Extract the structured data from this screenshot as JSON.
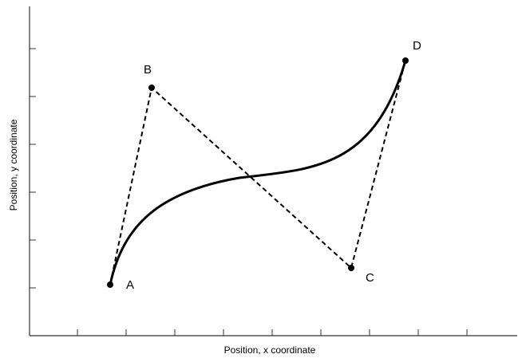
{
  "axes": {
    "xlabel": "Position, x coordinate",
    "ylabel": "Position, y coordinate"
  },
  "control_points": [
    {
      "label": "A"
    },
    {
      "label": "B"
    },
    {
      "label": "C"
    },
    {
      "label": "D"
    }
  ]
}
